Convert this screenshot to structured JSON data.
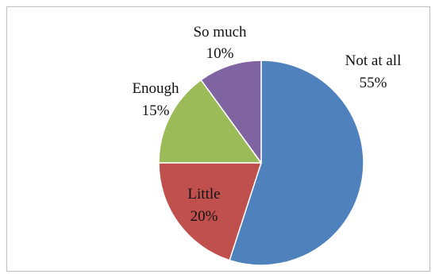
{
  "chart_data": {
    "type": "pie",
    "title": "",
    "categories": [
      "Not at all",
      "Little",
      "Enough",
      "So much"
    ],
    "values": [
      55,
      20,
      15,
      10
    ],
    "labels": [
      "55%",
      "20%",
      "15%",
      "10%"
    ],
    "colors": [
      "#4f81bd",
      "#c0504d",
      "#9bbb59",
      "#8064a2"
    ],
    "start_angle_deg": 0,
    "direction": "clockwise",
    "legend": "none",
    "data_labels": "category-and-percent"
  }
}
